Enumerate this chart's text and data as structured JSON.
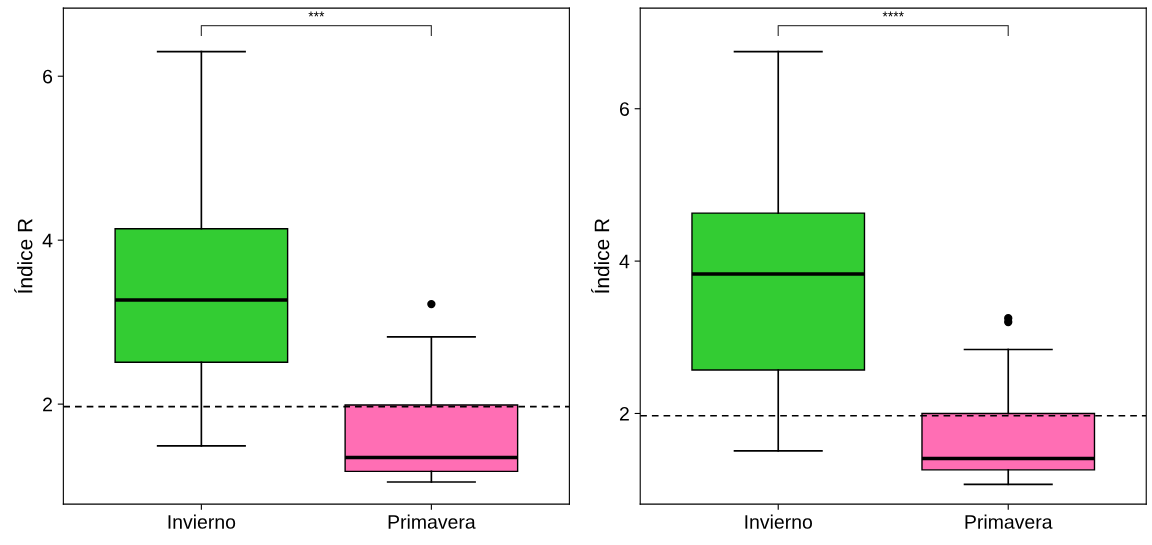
{
  "chart_data": [
    {
      "type": "box",
      "ylabel": "Índice R",
      "categories": [
        "Invierno",
        "Primavera"
      ],
      "colors": [
        "#33cc33",
        "#ff6eb4"
      ],
      "boxes": [
        {
          "low": 1.49,
          "q1": 2.51,
          "median": 3.27,
          "q3": 4.14,
          "high": 6.3
        },
        {
          "low": 1.05,
          "q1": 1.18,
          "median": 1.35,
          "q3": 1.99,
          "high": 2.82,
          "outliers": [
            3.22
          ]
        }
      ],
      "ylim": [
        0.78,
        6.83
      ],
      "yticks": [
        2,
        4,
        6
      ],
      "grid": false,
      "legend": false,
      "ref_lines": [
        {
          "axis": "y",
          "value": 1.97,
          "line_style": "dashed",
          "color": "#000000"
        }
      ],
      "annotations": [
        "***"
      ]
    },
    {
      "type": "box",
      "ylabel": "Índice R",
      "categories": [
        "Invierno",
        "Primavera"
      ],
      "colors": [
        "#33cc33",
        "#ff6eb4"
      ],
      "boxes": [
        {
          "low": 1.51,
          "q1": 2.57,
          "median": 3.83,
          "q3": 4.63,
          "high": 6.75
        },
        {
          "low": 1.07,
          "q1": 1.26,
          "median": 1.41,
          "q3": 2.0,
          "high": 2.84,
          "outliers": [
            3.25,
            3.2
          ]
        }
      ],
      "ylim": [
        0.81,
        7.32
      ],
      "yticks": [
        2,
        4,
        6
      ],
      "grid": false,
      "legend": false,
      "ref_lines": [
        {
          "axis": "y",
          "value": 1.97,
          "line_style": "dashed",
          "color": "#000000"
        }
      ],
      "annotations": [
        "****"
      ]
    }
  ]
}
